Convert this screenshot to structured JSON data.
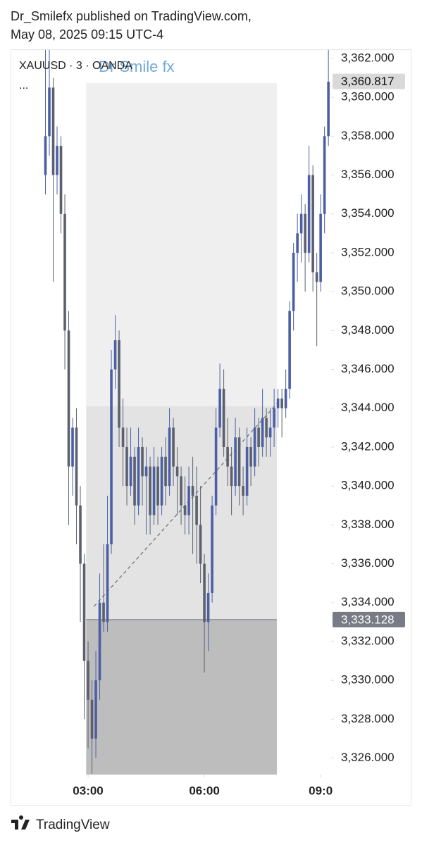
{
  "header": {
    "line1": "Dr_Smilefx published on TradingView.com,",
    "line2": "May 08, 2025 09:15 UTC-4"
  },
  "footer": {
    "brand": "TradingView"
  },
  "chart_data": {
    "type": "candlestick",
    "symbol": "XAUUSD · 3 · OANDA",
    "menu": "...",
    "watermark": "Dr Smile fx",
    "up_color": "#4b5fa5",
    "down_color": "#5c606e",
    "xlim": [
      1.0,
      9.27
    ],
    "xticks": [
      {
        "value": 3,
        "label": "03:00"
      },
      {
        "value": 6,
        "label": "06:00"
      },
      {
        "value": 9,
        "label": "09:0"
      }
    ],
    "ylim": [
      3325.15,
      3362.47
    ],
    "yticks": [
      {
        "value": 3326,
        "label": "3,326.000"
      },
      {
        "value": 3328,
        "label": "3,328.000"
      },
      {
        "value": 3330,
        "label": "3,330.000"
      },
      {
        "value": 3332,
        "label": "3,332.000"
      },
      {
        "value": 3334,
        "label": "3,334.000"
      },
      {
        "value": 3336,
        "label": "3,336.000"
      },
      {
        "value": 3338,
        "label": "3,338.000"
      },
      {
        "value": 3340,
        "label": "3,340.000"
      },
      {
        "value": 3342,
        "label": "3,342.000"
      },
      {
        "value": 3344,
        "label": "3,344.000"
      },
      {
        "value": 3346,
        "label": "3,346.000"
      },
      {
        "value": 3348,
        "label": "3,348.000"
      },
      {
        "value": 3350,
        "label": "3,350.000"
      },
      {
        "value": 3352,
        "label": "3,352.000"
      },
      {
        "value": 3354,
        "label": "3,354.000"
      },
      {
        "value": 3356,
        "label": "3,356.000"
      },
      {
        "value": 3358,
        "label": "3,358.000"
      },
      {
        "value": 3360,
        "label": "3,360.000"
      },
      {
        "value": 3362,
        "label": "3,362.000"
      }
    ],
    "x": [
      1.9,
      2.0,
      2.1,
      2.2,
      2.3,
      2.4,
      2.5,
      2.6,
      2.7,
      2.8,
      2.9,
      3.0,
      3.1,
      3.2,
      3.3,
      3.4,
      3.5,
      3.6,
      3.7,
      3.8,
      3.9,
      4.0,
      4.1,
      4.2,
      4.3,
      4.4,
      4.5,
      4.6,
      4.7,
      4.8,
      4.9,
      5.0,
      5.1,
      5.2,
      5.3,
      5.4,
      5.5,
      5.6,
      5.7,
      5.8,
      5.9,
      6.0,
      6.1,
      6.2,
      6.3,
      6.4,
      6.5,
      6.6,
      6.7,
      6.8,
      6.9,
      7.0,
      7.1,
      7.2,
      7.3,
      7.4,
      7.5,
      7.6,
      7.7,
      7.8,
      7.9,
      8.0,
      8.1,
      8.2,
      8.3,
      8.4,
      8.5,
      8.6,
      8.7,
      8.8,
      8.9,
      9.0,
      9.1,
      9.2
    ],
    "open": [
      3356,
      3358,
      3360.5,
      3356,
      3357.5,
      3354,
      3348,
      3341,
      3343,
      3339,
      3336,
      3331,
      3329,
      3327,
      3330,
      3334,
      3333,
      3337,
      3346,
      3347.5,
      3343,
      3342,
      3340,
      3341.5,
      3339,
      3342,
      3340.5,
      3341,
      3338.5,
      3341,
      3339,
      3341.5,
      3340,
      3343,
      3341,
      3340.5,
      3339,
      3338.5,
      3340,
      3339.5,
      3338,
      3336,
      3333,
      3334.5,
      3339,
      3343,
      3345,
      3342,
      3341,
      3340,
      3342.5,
      3340,
      3339.5,
      3342,
      3341,
      3343,
      3342,
      3343.5,
      3342.5,
      3343,
      3344,
      3344.5,
      3344,
      3345,
      3349,
      3352,
      3353,
      3354,
      3352,
      3356,
      3351,
      3350.5,
      3354,
      3358
    ],
    "high": [
      3362.5,
      3362.5,
      3361,
      3358.5,
      3358,
      3355,
      3349,
      3343.5,
      3344,
      3340,
      3336.5,
      3332,
      3330,
      3331.5,
      3335.5,
      3337,
      3339.5,
      3347,
      3348.8,
      3348,
      3344.5,
      3343,
      3343,
      3342,
      3343,
      3342.5,
      3342,
      3341.5,
      3342,
      3341.5,
      3342,
      3342.5,
      3344,
      3343.5,
      3342,
      3341,
      3340.5,
      3341,
      3341.5,
      3341,
      3340,
      3336.5,
      3335.5,
      3339.5,
      3344,
      3346.3,
      3346,
      3343.5,
      3342,
      3343.5,
      3343,
      3341,
      3343,
      3342.5,
      3344,
      3343.5,
      3345,
      3344,
      3344,
      3345,
      3345,
      3345,
      3346,
      3349.5,
      3352.5,
      3354,
      3355,
      3354.5,
      3357.5,
      3356.5,
      3352,
      3355,
      3358.5,
      3362.5
    ],
    "low": [
      3355,
      3357,
      3350.5,
      3355,
      3353,
      3346,
      3338,
      3339.5,
      3337,
      3333,
      3328,
      3326.5,
      3325.2,
      3326,
      3329,
      3332.5,
      3332.5,
      3336.5,
      3345,
      3342,
      3340,
      3339,
      3339.5,
      3338,
      3338.5,
      3339,
      3337.5,
      3337.5,
      3338,
      3338,
      3338.5,
      3339,
      3339.5,
      3340,
      3338.5,
      3338,
      3337.5,
      3337.5,
      3336.5,
      3336,
      3335,
      3330.4,
      3331.5,
      3334,
      3338.5,
      3342.5,
      3341.5,
      3340,
      3338.5,
      3339.5,
      3339,
      3338.5,
      3339,
      3340,
      3340.5,
      3341,
      3341.5,
      3341.5,
      3341.5,
      3342,
      3343,
      3342.5,
      3343.5,
      3344.5,
      3348,
      3350.5,
      3351.5,
      3350,
      3351.5,
      3350,
      3347.2,
      3350,
      3353,
      3357.5
    ],
    "close": [
      3358,
      3360.5,
      3356,
      3357.5,
      3354,
      3348,
      3341,
      3343,
      3339,
      3336,
      3331,
      3329,
      3327,
      3330,
      3334,
      3333,
      3337,
      3346,
      3347.5,
      3343,
      3342,
      3340,
      3341.5,
      3339,
      3342,
      3340.5,
      3341,
      3338.5,
      3341,
      3339,
      3341.5,
      3340,
      3343,
      3341,
      3340.5,
      3339,
      3338.5,
      3340,
      3339.5,
      3338,
      3336,
      3333,
      3334.5,
      3339,
      3343,
      3345,
      3342,
      3341,
      3340,
      3342.5,
      3340,
      3339.5,
      3342,
      3341,
      3343,
      3342,
      3343.5,
      3342.5,
      3343,
      3344,
      3344.5,
      3344,
      3345,
      3349,
      3352,
      3353,
      3354,
      3352,
      3356,
      3351,
      3350.5,
      3354,
      3358,
      3360.8
    ],
    "zone_x": [
      2.95,
      7.87
    ],
    "zones": [
      {
        "from": 3344.1,
        "to": 3360.73,
        "color": "#efefef"
      },
      {
        "from": 3333.128,
        "to": 3344.1,
        "color": "#e3e3e3"
      },
      {
        "from": 3325.15,
        "to": 3333.128,
        "color": "#bdbdbd"
      }
    ],
    "trend_line": {
      "x": [
        3.15,
        7.9
      ],
      "y": [
        3333.8,
        3344.3
      ]
    },
    "last_price": {
      "value": 3360.817,
      "label": "3,360.817"
    },
    "entry_price": {
      "value": 3333.128,
      "label": "3,333.128"
    }
  }
}
